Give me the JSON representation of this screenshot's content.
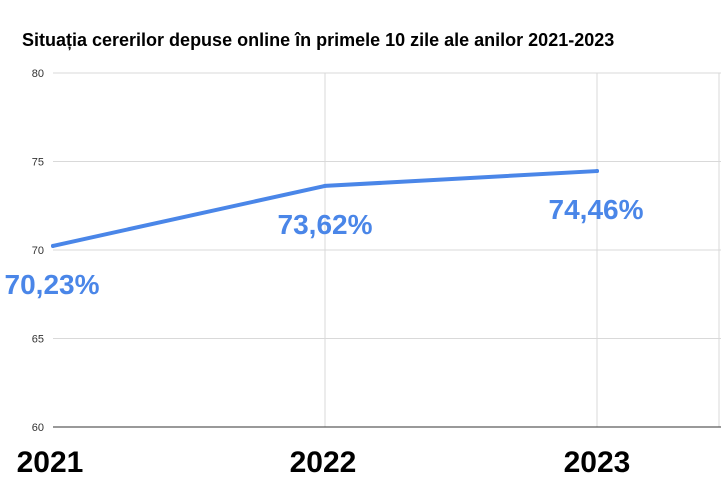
{
  "chart_data": {
    "type": "line",
    "title": "Situația cererilor depuse online în primele 10 zile ale anilor 2021-2023",
    "categories": [
      "2021",
      "2022",
      "2023"
    ],
    "series": [
      {
        "values": [
          70.23,
          73.62,
          74.46
        ],
        "data_labels": [
          "70,23%",
          "73,62%",
          "74,46%"
        ]
      }
    ],
    "ylim": [
      60,
      80
    ],
    "yticks": [
      "60",
      "65",
      "70",
      "75",
      "80"
    ],
    "grid": true,
    "legend": "none",
    "colors": {
      "line": "#4a86e8",
      "grid": "#d9d9d9",
      "axis": "#333333"
    }
  }
}
